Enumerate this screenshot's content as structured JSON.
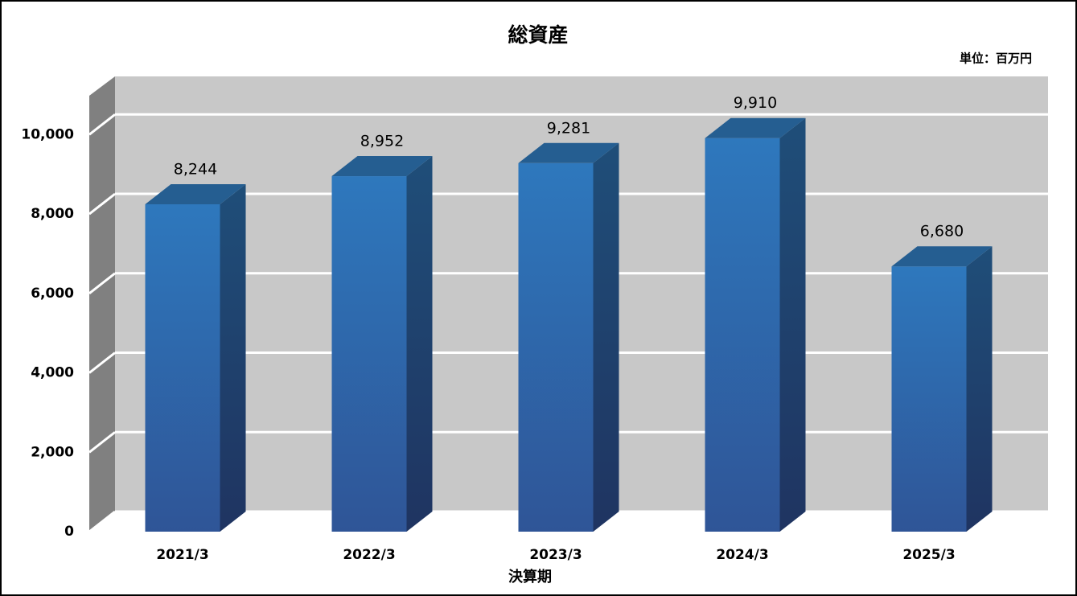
{
  "chart_data": {
    "type": "bar3d",
    "title": "総資産",
    "unit_label": "単位：百万円",
    "x_label": "決算期",
    "categories": [
      "2021/3",
      "2022/3",
      "2023/3",
      "2024/3",
      "2025/3"
    ],
    "values": [
      8244,
      8952,
      9281,
      9910,
      6680
    ],
    "value_labels": [
      "8,244",
      "8,952",
      "9,281",
      "9,910",
      "6,680"
    ],
    "color": "#2e75b6",
    "ylim": [
      0,
      11000
    ],
    "yticks": [
      0,
      {
        "value": 2000,
        "label": "2,000"
      },
      {
        "value": 4000,
        "label": "4,000"
      },
      {
        "value": 6000,
        "label": "6,000"
      },
      {
        "value": 8000,
        "label": "8,000"
      },
      {
        "value": 10000,
        "label": "10,000"
      }
    ],
    "grid": true
  }
}
